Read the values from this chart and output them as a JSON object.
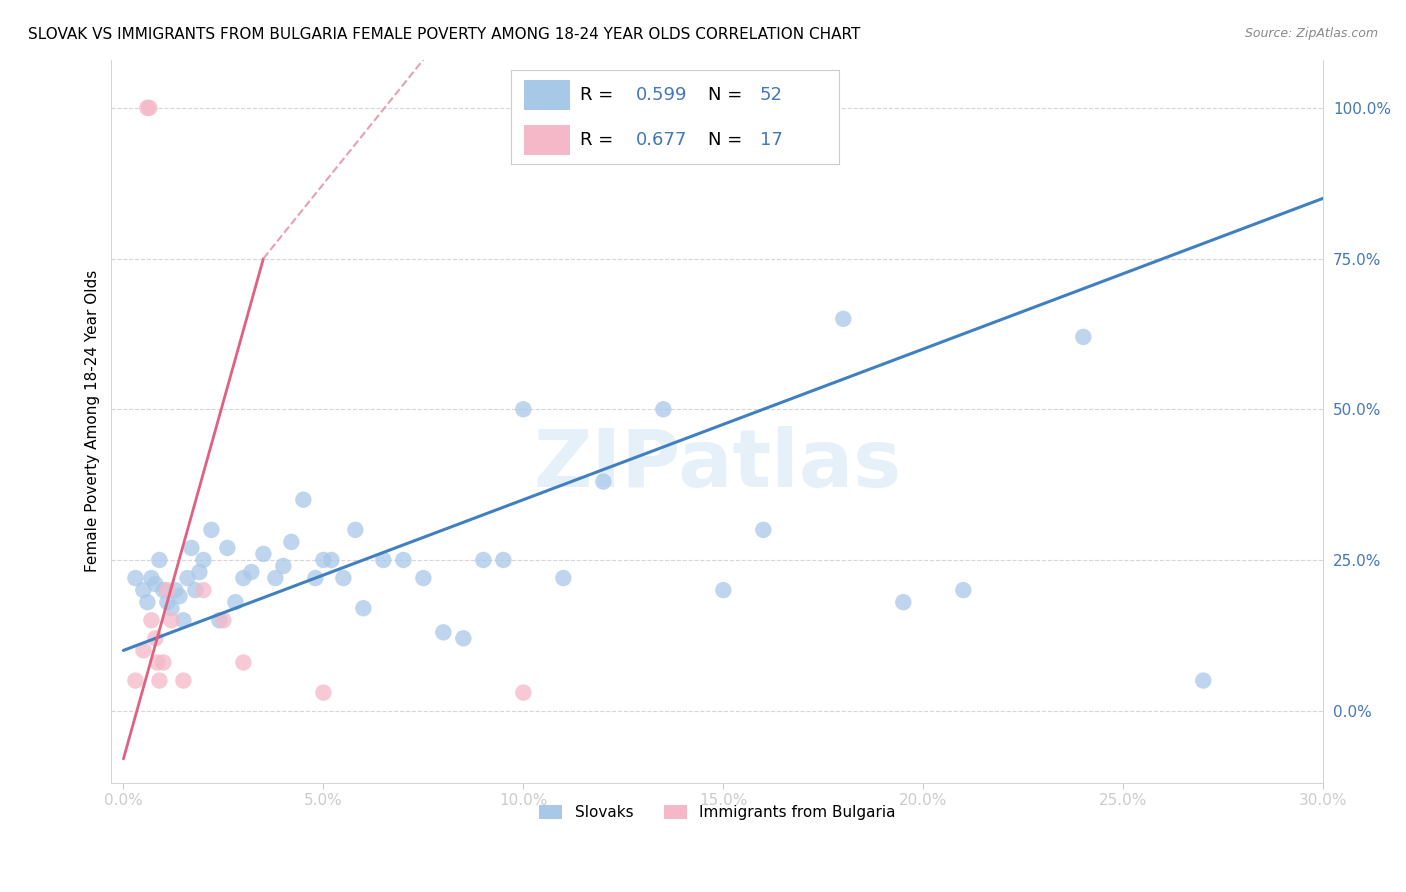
{
  "title": "SLOVAK VS IMMIGRANTS FROM BULGARIA FEMALE POVERTY AMONG 18-24 YEAR OLDS CORRELATION CHART",
  "source": "Source: ZipAtlas.com",
  "ylabel": "Female Poverty Among 18-24 Year Olds",
  "xlim": [
    0.0,
    30.0
  ],
  "ylim": [
    -12.0,
    108.0
  ],
  "blue_color": "#a8c8e8",
  "pink_color": "#f4b8c8",
  "blue_line_color": "#4080c0",
  "pink_line_color": "#e06080",
  "pink_dash_color": "#e8a0b0",
  "watermark": "ZIPatlas",
  "slovaks_x": [
    0.3,
    0.5,
    0.6,
    0.7,
    0.8,
    0.9,
    1.0,
    1.1,
    1.2,
    1.3,
    1.4,
    1.5,
    1.6,
    1.7,
    1.8,
    1.9,
    2.0,
    2.2,
    2.4,
    2.6,
    2.8,
    3.0,
    3.2,
    3.5,
    3.8,
    4.0,
    4.2,
    4.5,
    4.8,
    5.0,
    5.2,
    5.5,
    5.8,
    6.0,
    6.5,
    7.0,
    7.5,
    8.0,
    8.5,
    9.0,
    9.5,
    10.0,
    11.0,
    12.0,
    13.5,
    15.0,
    16.0,
    18.0,
    19.5,
    21.0,
    24.0,
    27.0
  ],
  "slovaks_y": [
    22,
    20,
    18,
    22,
    21,
    25,
    20,
    18,
    17,
    20,
    19,
    15,
    22,
    27,
    20,
    23,
    25,
    30,
    15,
    27,
    18,
    22,
    23,
    26,
    22,
    24,
    28,
    35,
    22,
    25,
    25,
    22,
    30,
    17,
    25,
    25,
    22,
    13,
    12,
    25,
    25,
    50,
    22,
    38,
    50,
    20,
    30,
    65,
    18,
    20,
    62,
    5
  ],
  "bulgaria_x": [
    0.3,
    0.5,
    0.6,
    0.65,
    0.7,
    0.8,
    0.85,
    0.9,
    1.0,
    1.1,
    1.2,
    1.5,
    2.0,
    2.5,
    3.0,
    5.0,
    10.0
  ],
  "bulgaria_y": [
    5,
    10,
    100,
    100,
    15,
    12,
    8,
    5,
    8,
    20,
    15,
    5,
    20,
    15,
    8,
    3,
    3
  ],
  "blue_trend": [
    0.0,
    10.0,
    30.0,
    85.0
  ],
  "pink_solid_trend": [
    0.0,
    -8.0,
    3.5,
    75.0
  ],
  "pink_dash_trend": [
    3.5,
    75.0,
    7.5,
    108.0
  ],
  "legend_R_blue": "0.599",
  "legend_N_blue": "52",
  "legend_R_pink": "0.677",
  "legend_N_pink": "17"
}
